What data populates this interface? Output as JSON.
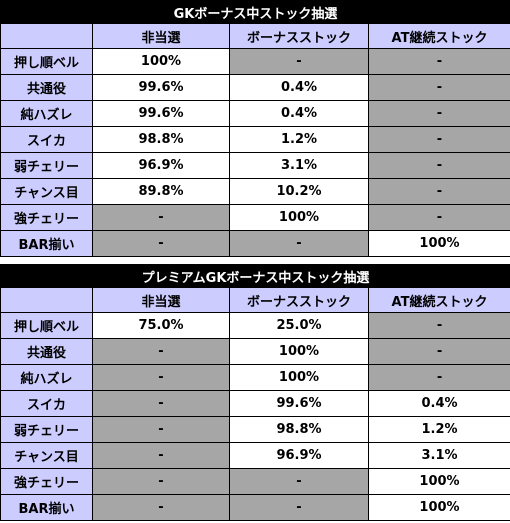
{
  "columns": [
    "非当選",
    "ボーナスストック",
    "AT継続ストック"
  ],
  "tables": [
    {
      "title": "GKボーナス中ストック抽選",
      "rows": [
        {
          "label": "押し順ベル",
          "cells": [
            "100%",
            "-",
            "-"
          ],
          "gray": [
            false,
            true,
            true
          ]
        },
        {
          "label": "共通役",
          "cells": [
            "99.6%",
            "0.4%",
            "-"
          ],
          "gray": [
            false,
            false,
            true
          ]
        },
        {
          "label": "純ハズレ",
          "cells": [
            "99.6%",
            "0.4%",
            "-"
          ],
          "gray": [
            false,
            false,
            true
          ]
        },
        {
          "label": "スイカ",
          "cells": [
            "98.8%",
            "1.2%",
            "-"
          ],
          "gray": [
            false,
            false,
            true
          ]
        },
        {
          "label": "弱チェリー",
          "cells": [
            "96.9%",
            "3.1%",
            "-"
          ],
          "gray": [
            false,
            false,
            true
          ]
        },
        {
          "label": "チャンス目",
          "cells": [
            "89.8%",
            "10.2%",
            "-"
          ],
          "gray": [
            false,
            false,
            true
          ]
        },
        {
          "label": "強チェリー",
          "cells": [
            "-",
            "100%",
            "-"
          ],
          "gray": [
            true,
            false,
            true
          ]
        },
        {
          "label": "BAR揃い",
          "cells": [
            "-",
            "-",
            "100%"
          ],
          "gray": [
            true,
            true,
            false
          ]
        }
      ]
    },
    {
      "title": "プレミアムGKボーナス中ストック抽選",
      "rows": [
        {
          "label": "押し順ベル",
          "cells": [
            "75.0%",
            "25.0%",
            "-"
          ],
          "gray": [
            false,
            false,
            true
          ]
        },
        {
          "label": "共通役",
          "cells": [
            "-",
            "100%",
            "-"
          ],
          "gray": [
            true,
            false,
            true
          ]
        },
        {
          "label": "純ハズレ",
          "cells": [
            "-",
            "100%",
            "-"
          ],
          "gray": [
            true,
            false,
            true
          ]
        },
        {
          "label": "スイカ",
          "cells": [
            "-",
            "99.6%",
            "0.4%"
          ],
          "gray": [
            true,
            false,
            false
          ]
        },
        {
          "label": "弱チェリー",
          "cells": [
            "-",
            "98.8%",
            "1.2%"
          ],
          "gray": [
            true,
            false,
            false
          ]
        },
        {
          "label": "チャンス目",
          "cells": [
            "-",
            "96.9%",
            "3.1%"
          ],
          "gray": [
            true,
            false,
            false
          ]
        },
        {
          "label": "強チェリー",
          "cells": [
            "-",
            "-",
            "100%"
          ],
          "gray": [
            true,
            true,
            false
          ]
        },
        {
          "label": "BAR揃い",
          "cells": [
            "-",
            "-",
            "100%"
          ],
          "gray": [
            true,
            true,
            false
          ]
        }
      ]
    }
  ]
}
